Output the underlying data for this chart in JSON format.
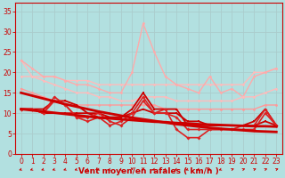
{
  "title": "",
  "xlabel": "Vent moyen/en rafales ( km/h )",
  "xlabel_color": "#cc0000",
  "bg_color": "#b2e0e0",
  "grid_color": "#c0d8d8",
  "x": [
    0,
    1,
    2,
    3,
    4,
    5,
    6,
    7,
    8,
    9,
    10,
    11,
    12,
    13,
    14,
    15,
    16,
    17,
    18,
    19,
    20,
    21,
    22,
    23
  ],
  "series": [
    {
      "y": [
        23,
        19,
        19,
        19,
        18,
        18,
        18,
        17,
        17,
        17,
        17,
        17,
        17,
        17,
        17,
        17,
        17,
        17,
        17,
        17,
        17,
        20,
        20,
        21
      ],
      "color": "#ffbbbb",
      "lw": 1.0,
      "marker": "o",
      "ms": 2.0,
      "zorder": 2
    },
    {
      "y": [
        23,
        21,
        19,
        19,
        18,
        17,
        17,
        16,
        15,
        15,
        20,
        32,
        25,
        19,
        17,
        16,
        15,
        19,
        15,
        16,
        14,
        19,
        20,
        21
      ],
      "color": "#ffaaaa",
      "lw": 1.0,
      "marker": "o",
      "ms": 2.0,
      "zorder": 2
    },
    {
      "y": [
        19,
        19,
        18,
        17,
        16,
        15,
        15,
        14,
        14,
        13,
        13,
        14,
        14,
        14,
        13,
        13,
        13,
        13,
        13,
        13,
        14,
        14,
        15,
        16
      ],
      "color": "#ffbbbb",
      "lw": 1.0,
      "marker": "o",
      "ms": 2.0,
      "zorder": 2
    },
    {
      "y": [
        16,
        15,
        14,
        13,
        13,
        12,
        12,
        12,
        12,
        12,
        12,
        12,
        12,
        11,
        11,
        11,
        11,
        11,
        11,
        11,
        11,
        11,
        12,
        12
      ],
      "color": "#ff9999",
      "lw": 1.0,
      "marker": "o",
      "ms": 2.0,
      "zorder": 2
    },
    {
      "y": [
        11,
        11,
        11,
        13,
        13,
        12,
        10,
        10,
        9,
        9,
        11,
        15,
        11,
        11,
        11,
        7,
        7,
        7,
        7,
        7,
        7,
        8,
        11,
        7
      ],
      "color": "#cc0000",
      "lw": 1.3,
      "marker": "s",
      "ms": 2.0,
      "zorder": 3
    },
    {
      "y": [
        11,
        11,
        10,
        10,
        10,
        10,
        10,
        9,
        9,
        9,
        10,
        11,
        10,
        10,
        10,
        8,
        8,
        7,
        7,
        7,
        7,
        7,
        8,
        7
      ],
      "color": "#cc0000",
      "lw": 1.3,
      "marker": "s",
      "ms": 2.0,
      "zorder": 3
    },
    {
      "y": [
        11,
        10.7,
        10.4,
        10.1,
        9.8,
        9.5,
        9.2,
        8.9,
        8.7,
        8.5,
        8.3,
        8.1,
        7.9,
        7.8,
        7.6,
        7.5,
        7.3,
        7.2,
        7.1,
        7.0,
        6.9,
        6.8,
        6.8,
        6.7
      ],
      "color": "#cc0000",
      "lw": 2.0,
      "marker": null,
      "ms": 0,
      "zorder": 4
    },
    {
      "y": [
        15,
        14.3,
        13.6,
        12.9,
        12.2,
        11.6,
        11.0,
        10.4,
        9.9,
        9.4,
        8.9,
        8.5,
        8.1,
        7.7,
        7.3,
        7.0,
        6.7,
        6.4,
        6.2,
        6.0,
        5.8,
        5.6,
        5.5,
        5.4
      ],
      "color": "#cc0000",
      "lw": 2.0,
      "marker": null,
      "ms": 0,
      "zorder": 4
    },
    {
      "y": [
        11,
        11,
        10,
        14,
        12,
        9,
        9,
        10,
        8,
        7,
        9,
        13,
        10,
        11,
        6,
        4,
        4,
        6,
        6,
        6,
        7,
        7,
        11,
        7
      ],
      "color": "#dd2222",
      "lw": 1.2,
      "marker": "D",
      "ms": 2.0,
      "zorder": 3
    },
    {
      "y": [
        11,
        11,
        10,
        13,
        12,
        9,
        8,
        9,
        7,
        8,
        10,
        14,
        10,
        10,
        9,
        6,
        6,
        6,
        6,
        6,
        6,
        6,
        10,
        7
      ],
      "color": "#dd2222",
      "lw": 1.2,
      "marker": "D",
      "ms": 2.0,
      "zorder": 3
    }
  ],
  "ylim": [
    0,
    37
  ],
  "xlim": [
    -0.5,
    23.5
  ],
  "yticks": [
    0,
    5,
    10,
    15,
    20,
    25,
    30,
    35
  ],
  "xticks": [
    0,
    1,
    2,
    3,
    4,
    5,
    6,
    7,
    8,
    9,
    10,
    11,
    12,
    13,
    14,
    15,
    16,
    17,
    18,
    19,
    20,
    21,
    22,
    23
  ],
  "tick_color": "#cc0000",
  "tick_fontsize": 5.5,
  "xlabel_fontsize": 6.5,
  "arrow_angles": [
    225,
    225,
    225,
    225,
    225,
    225,
    225,
    225,
    225,
    225,
    180,
    180,
    225,
    225,
    225,
    225,
    225,
    225,
    225,
    45,
    45,
    45,
    45,
    45
  ]
}
